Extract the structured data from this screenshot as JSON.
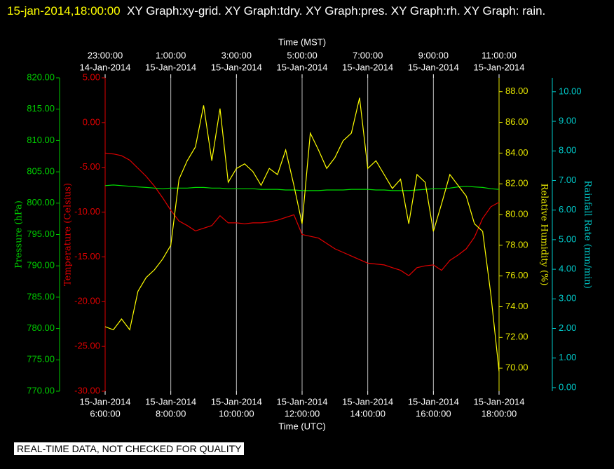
{
  "chart_data": {
    "type": "line",
    "title_time": "15-jan-2014,18:00:00",
    "title": "XY Graph:xy-grid.  XY Graph:tdry.  XY Graph:pres.  XY Graph:rh.  XY Graph: rain.",
    "xlabel": "Time (UTC)",
    "x2label": "Time (MST)",
    "footer": "REAL-TIME DATA, NOT CHECKED FOR QUALITY",
    "grid": true,
    "xlim": [
      "2014-01-15T06:00",
      "2014-01-15T18:00"
    ],
    "xticks": [
      {
        "value": "2014-01-15T06:00",
        "label": [
          "15-Jan-2014",
          "6:00:00"
        ]
      },
      {
        "value": "2014-01-15T08:00",
        "label": [
          "15-Jan-2014",
          "8:00:00"
        ]
      },
      {
        "value": "2014-01-15T10:00",
        "label": [
          "15-Jan-2014",
          "10:00:00"
        ]
      },
      {
        "value": "2014-01-15T12:00",
        "label": [
          "15-Jan-2014",
          "12:00:00"
        ]
      },
      {
        "value": "2014-01-15T14:00",
        "label": [
          "15-Jan-2014",
          "14:00:00"
        ]
      },
      {
        "value": "2014-01-15T16:00",
        "label": [
          "15-Jan-2014",
          "16:00:00"
        ]
      },
      {
        "value": "2014-01-15T18:00",
        "label": [
          "15-Jan-2014",
          "18:00:00"
        ]
      }
    ],
    "x2ticks": [
      {
        "value": "2014-01-15T06:00",
        "label": [
          "23:00:00",
          "14-Jan-2014"
        ]
      },
      {
        "value": "2014-01-15T08:00",
        "label": [
          "1:00:00",
          "15-Jan-2014"
        ]
      },
      {
        "value": "2014-01-15T10:00",
        "label": [
          "3:00:00",
          "15-Jan-2014"
        ]
      },
      {
        "value": "2014-01-15T12:00",
        "label": [
          "5:00:00",
          "15-Jan-2014"
        ]
      },
      {
        "value": "2014-01-15T14:00",
        "label": [
          "7:00:00",
          "15-Jan-2014"
        ]
      },
      {
        "value": "2014-01-15T16:00",
        "label": [
          "9:00:00",
          "15-Jan-2014"
        ]
      },
      {
        "value": "2014-01-15T18:00",
        "label": [
          "11:00:00",
          "15-Jan-2014"
        ]
      }
    ],
    "yaxes": [
      {
        "label": "Temperature (Celsius)",
        "color": "#e00000",
        "side": "left",
        "lim": [
          -30,
          5
        ],
        "ticks": [
          {
            "value": -30,
            "label": "-30.00"
          },
          {
            "value": -25,
            "label": "-25.00"
          },
          {
            "value": -20,
            "label": "-20.00"
          },
          {
            "value": -15,
            "label": "-15.00"
          },
          {
            "value": -10,
            "label": "-10.00"
          },
          {
            "value": -5,
            "label": "-5.00"
          },
          {
            "value": 0,
            "label": "0.00"
          },
          {
            "value": 5,
            "label": "5.00"
          }
        ]
      },
      {
        "label": "Pressure (hPa)",
        "color": "#00cc00",
        "side": "left",
        "lim": [
          770,
          820
        ],
        "ticks": [
          {
            "value": 770,
            "label": "770.00"
          },
          {
            "value": 775,
            "label": "775.00"
          },
          {
            "value": 780,
            "label": "780.00"
          },
          {
            "value": 785,
            "label": "785.00"
          },
          {
            "value": 790,
            "label": "790.00"
          },
          {
            "value": 795,
            "label": "795.00"
          },
          {
            "value": 800,
            "label": "800.00"
          },
          {
            "value": 805,
            "label": "805.00"
          },
          {
            "value": 810,
            "label": "810.00"
          },
          {
            "value": 815,
            "label": "815.00"
          },
          {
            "value": 820,
            "label": "820.00"
          }
        ]
      },
      {
        "label": "Relative Humidity (%)",
        "color": "#e6e600",
        "side": "right",
        "lim": [
          68.5,
          88.9
        ],
        "ticks": [
          {
            "value": 70,
            "label": "70.00"
          },
          {
            "value": 72,
            "label": "72.00"
          },
          {
            "value": 74,
            "label": "74.00"
          },
          {
            "value": 76,
            "label": "76.00"
          },
          {
            "value": 78,
            "label": "78.00"
          },
          {
            "value": 80,
            "label": "80.00"
          },
          {
            "value": 82,
            "label": "82.00"
          },
          {
            "value": 84,
            "label": "84.00"
          },
          {
            "value": 86,
            "label": "86.00"
          },
          {
            "value": 88,
            "label": "88.00"
          }
        ]
      },
      {
        "label": "Rainfall Rate (mm/min)",
        "color": "#00cccc",
        "side": "right",
        "lim": [
          -0.12,
          10.47
        ],
        "ticks": [
          {
            "value": 0,
            "label": "0.00"
          },
          {
            "value": 1,
            "label": "1.00"
          },
          {
            "value": 2,
            "label": "2.00"
          },
          {
            "value": 3,
            "label": "3.00"
          },
          {
            "value": 4,
            "label": "4.00"
          },
          {
            "value": 5,
            "label": "5.00"
          },
          {
            "value": 6,
            "label": "6.00"
          },
          {
            "value": 7,
            "label": "7.00"
          },
          {
            "value": 8,
            "label": "8.00"
          },
          {
            "value": 9,
            "label": "9.00"
          },
          {
            "value": 10,
            "label": "10.00"
          }
        ]
      }
    ],
    "x": [
      "2014-01-15T06:00",
      "2014-01-15T06:15",
      "2014-01-15T06:30",
      "2014-01-15T06:45",
      "2014-01-15T07:00",
      "2014-01-15T07:15",
      "2014-01-15T07:30",
      "2014-01-15T07:45",
      "2014-01-15T08:00",
      "2014-01-15T08:15",
      "2014-01-15T08:30",
      "2014-01-15T08:45",
      "2014-01-15T09:00",
      "2014-01-15T09:15",
      "2014-01-15T09:30",
      "2014-01-15T09:45",
      "2014-01-15T10:00",
      "2014-01-15T10:15",
      "2014-01-15T10:30",
      "2014-01-15T10:45",
      "2014-01-15T11:00",
      "2014-01-15T11:15",
      "2014-01-15T11:30",
      "2014-01-15T11:45",
      "2014-01-15T12:00",
      "2014-01-15T12:15",
      "2014-01-15T12:30",
      "2014-01-15T12:45",
      "2014-01-15T13:00",
      "2014-01-15T13:15",
      "2014-01-15T13:30",
      "2014-01-15T13:45",
      "2014-01-15T14:00",
      "2014-01-15T14:15",
      "2014-01-15T14:30",
      "2014-01-15T14:45",
      "2014-01-15T15:00",
      "2014-01-15T15:15",
      "2014-01-15T15:30",
      "2014-01-15T15:45",
      "2014-01-15T16:00",
      "2014-01-15T16:15",
      "2014-01-15T16:30",
      "2014-01-15T16:45",
      "2014-01-15T17:00",
      "2014-01-15T17:15",
      "2014-01-15T17:30",
      "2014-01-15T17:45",
      "2014-01-15T18:00"
    ],
    "series": [
      {
        "name": "tdry",
        "color": "#e00000",
        "axis": 0,
        "values": [
          -3.4,
          -3.5,
          -3.7,
          -4.2,
          -5.1,
          -6.0,
          -7.1,
          -8.4,
          -9.8,
          -11.0,
          -11.5,
          -12.1,
          -11.8,
          -11.5,
          -10.4,
          -11.2,
          -11.2,
          -11.3,
          -11.2,
          -11.2,
          -11.1,
          -10.9,
          -10.6,
          -10.3,
          -12.5,
          -12.7,
          -12.9,
          -13.5,
          -14.1,
          -14.5,
          -14.9,
          -15.3,
          -15.7,
          -15.8,
          -15.9,
          -16.2,
          -16.5,
          -17.1,
          -16.2,
          -16.0,
          -15.9,
          -16.5,
          -15.4,
          -14.8,
          -14.1,
          -12.8,
          -10.7,
          -9.4,
          -8.9
        ]
      },
      {
        "name": "pres",
        "color": "#00dd00",
        "axis": 1,
        "values": [
          802.8,
          802.9,
          802.8,
          802.7,
          802.6,
          802.5,
          802.4,
          802.3,
          802.4,
          802.4,
          802.4,
          802.5,
          802.5,
          802.4,
          802.4,
          802.3,
          802.3,
          802.3,
          802.3,
          802.2,
          802.2,
          802.2,
          802.1,
          802.1,
          802.0,
          802.0,
          802.0,
          802.1,
          802.1,
          802.1,
          802.2,
          802.2,
          802.2,
          802.1,
          802.1,
          802.0,
          802.0,
          802.0,
          802.1,
          802.2,
          802.3,
          802.3,
          802.4,
          802.6,
          802.7,
          802.6,
          802.5,
          802.3,
          802.2
        ]
      },
      {
        "name": "rh",
        "color": "#ffff00",
        "axis": 2,
        "values": [
          72.7,
          72.5,
          73.2,
          72.5,
          75.0,
          75.9,
          76.4,
          77.1,
          78.0,
          82.3,
          83.5,
          84.4,
          87.1,
          83.5,
          86.9,
          82.1,
          83.0,
          83.3,
          82.8,
          81.9,
          83.0,
          82.6,
          84.2,
          81.9,
          79.4,
          85.3,
          84.2,
          83.0,
          83.7,
          84.8,
          85.3,
          87.6,
          83.0,
          83.5,
          82.6,
          81.7,
          82.3,
          79.4,
          82.6,
          82.1,
          78.9,
          80.7,
          82.6,
          81.9,
          81.2,
          79.4,
          78.9,
          74.8,
          69.8
        ]
      }
    ]
  }
}
